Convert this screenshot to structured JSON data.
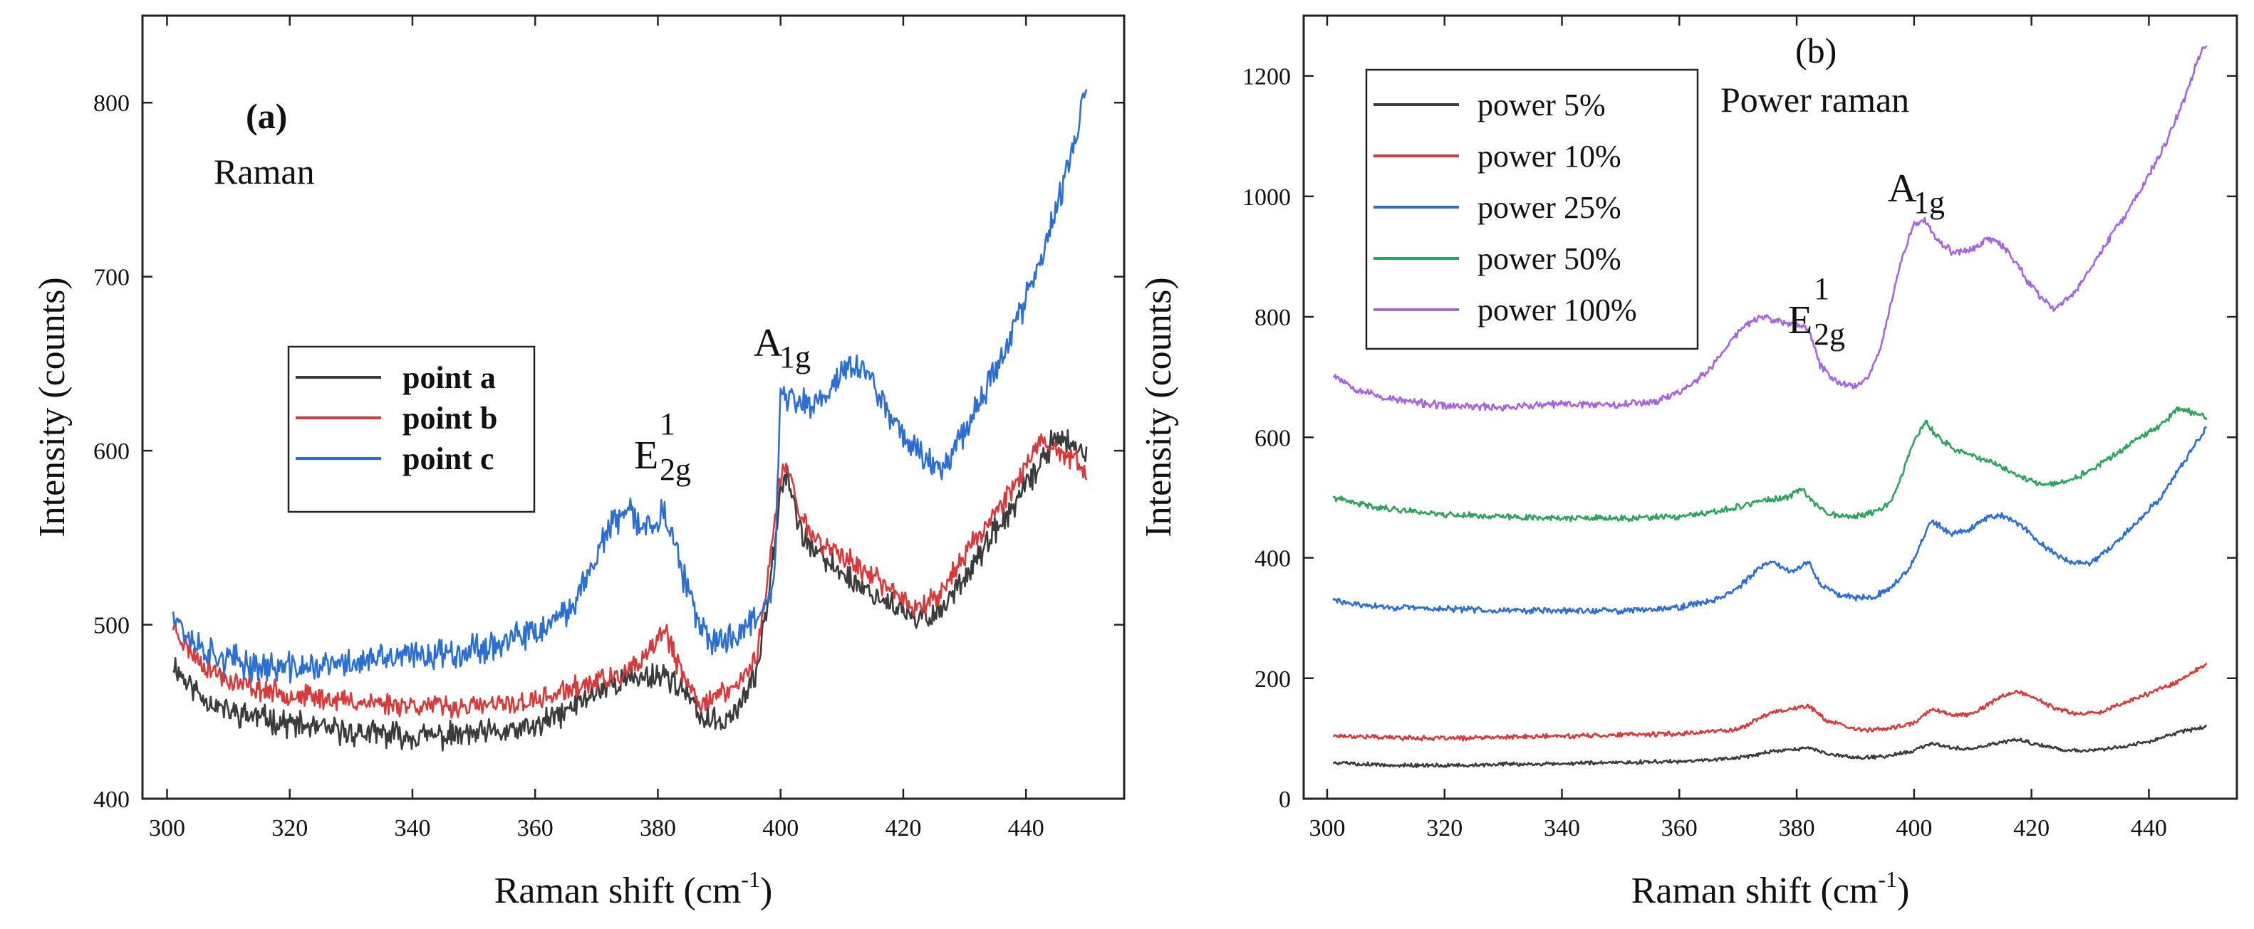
{
  "figure": {
    "panels": [
      "(a)",
      "(b)"
    ]
  },
  "chart_data": [
    {
      "type": "line",
      "panel_label": "(a)",
      "annotation": "Raman",
      "xlabel": "Raman shift (cm",
      "xlabel_sup": "-1",
      "xlabel_tail": ")",
      "ylabel": "Intensity (counts)",
      "xlim": [
        296,
        456
      ],
      "ylim": [
        400,
        850
      ],
      "x_ticks": [
        300,
        320,
        340,
        360,
        380,
        400,
        420,
        440
      ],
      "x_tick_labels": [
        "300",
        "320",
        "340",
        "360",
        "380",
        "400",
        "420",
        "440"
      ],
      "y_ticks": [
        400,
        500,
        600,
        700,
        800
      ],
      "y_tick_labels": [
        "400",
        "500",
        "600",
        "700",
        "800"
      ],
      "legend": {
        "placement": "center-left"
      },
      "peaks": [
        {
          "label_main": "E",
          "label_sup": "1",
          "label_sub": "2g",
          "x": 381,
          "y": 598
        },
        {
          "label_main": "A",
          "label_sup": "",
          "label_sub": "1g",
          "x": 401,
          "y": 648
        }
      ],
      "series": [
        {
          "name": "point a",
          "color": "#3b3b3b",
          "noise": 6,
          "seed": 11,
          "x": [
            301,
            303,
            306,
            310,
            315,
            320,
            325,
            330,
            335,
            340,
            345,
            350,
            355,
            360,
            365,
            370,
            374,
            378,
            381,
            384,
            387,
            390,
            393,
            396,
            398,
            400,
            401,
            403,
            406,
            410,
            414,
            418,
            422,
            426,
            430,
            434,
            438,
            442,
            445,
            448,
            450
          ],
          "y": [
            478,
            468,
            458,
            450,
            447,
            443,
            440,
            438,
            437,
            436,
            436,
            437,
            438,
            441,
            450,
            462,
            468,
            470,
            472,
            463,
            447,
            443,
            452,
            470,
            518,
            578,
            590,
            555,
            540,
            530,
            520,
            512,
            502,
            508,
            528,
            548,
            568,
            590,
            610,
            600,
            597
          ]
        },
        {
          "name": "point b",
          "color": "#d63a3a",
          "noise": 5,
          "seed": 23,
          "x": [
            301,
            303,
            306,
            310,
            315,
            320,
            325,
            330,
            335,
            340,
            345,
            350,
            355,
            360,
            365,
            370,
            374,
            378,
            381,
            384,
            387,
            390,
            393,
            396,
            398,
            400,
            401,
            403,
            406,
            410,
            414,
            418,
            422,
            426,
            430,
            434,
            438,
            442,
            445,
            448,
            450
          ],
          "y": [
            500,
            488,
            477,
            468,
            463,
            460,
            458,
            456,
            455,
            454,
            453,
            453,
            454,
            456,
            462,
            468,
            470,
            480,
            498,
            470,
            455,
            460,
            465,
            480,
            530,
            585,
            592,
            565,
            548,
            540,
            530,
            520,
            510,
            518,
            540,
            560,
            580,
            603,
            600,
            595,
            585
          ]
        },
        {
          "name": "point c",
          "color": "#2d6fd0",
          "noise": 7,
          "seed": 37,
          "x": [
            301,
            303,
            306,
            310,
            315,
            320,
            325,
            330,
            335,
            340,
            345,
            350,
            355,
            360,
            365,
            368,
            372,
            375,
            378,
            381,
            384,
            387,
            390,
            393,
            396,
            399,
            400,
            402,
            405,
            408,
            411,
            414,
            418,
            422,
            426,
            430,
            434,
            438,
            442,
            446,
            449,
            450
          ],
          "y": [
            510,
            495,
            486,
            480,
            476,
            475,
            476,
            478,
            480,
            482,
            484,
            486,
            490,
            495,
            505,
            525,
            555,
            565,
            555,
            565,
            530,
            495,
            490,
            495,
            505,
            525,
            630,
            630,
            625,
            635,
            650,
            645,
            620,
            600,
            590,
            612,
            640,
            670,
            705,
            750,
            795,
            805
          ]
        }
      ]
    },
    {
      "type": "line",
      "panel_label": "(b)",
      "annotation": "Power raman",
      "xlabel": "Raman shift (cm",
      "xlabel_sup": "-1",
      "xlabel_tail": ")",
      "ylabel": "Intensity (counts)",
      "xlim": [
        296,
        455
      ],
      "ylim": [
        0,
        1300
      ],
      "x_ticks": [
        300,
        320,
        340,
        360,
        380,
        400,
        420,
        440
      ],
      "x_tick_labels": [
        "300",
        "320",
        "340",
        "360",
        "380",
        "400",
        "420",
        "440"
      ],
      "y_ticks": [
        0,
        200,
        400,
        600,
        800,
        1000,
        1200
      ],
      "y_tick_labels": [
        "0",
        "200",
        "400",
        "600",
        "800",
        "1000",
        "1200"
      ],
      "legend": {
        "placement": "top-left"
      },
      "peaks": [
        {
          "label_main": "E",
          "label_sup": "1",
          "label_sub": "2g",
          "x": 381,
          "y": 770
        },
        {
          "label_main": "A",
          "label_sup": "",
          "label_sub": "1g",
          "x": 402,
          "y": 990
        }
      ],
      "series": [
        {
          "name": "power 5%",
          "color": "#3b3b3b",
          "noise": 2.5,
          "seed": 5,
          "x": [
            301,
            310,
            320,
            330,
            340,
            350,
            360,
            370,
            376,
            380,
            382,
            385,
            390,
            395,
            400,
            403,
            406,
            410,
            415,
            418,
            422,
            426,
            430,
            435,
            440,
            445,
            450
          ],
          "y": [
            60,
            56,
            55,
            57,
            58,
            60,
            62,
            68,
            78,
            82,
            85,
            75,
            68,
            70,
            80,
            92,
            85,
            82,
            95,
            97,
            88,
            80,
            80,
            85,
            95,
            110,
            120
          ]
        },
        {
          "name": "power 10%",
          "color": "#d63a3a",
          "noise": 3,
          "seed": 17,
          "x": [
            301,
            310,
            320,
            330,
            340,
            350,
            360,
            370,
            376,
            380,
            382,
            385,
            390,
            395,
            400,
            403,
            406,
            410,
            414,
            417,
            420,
            424,
            428,
            432,
            436,
            440,
            445,
            450
          ],
          "y": [
            105,
            102,
            100,
            102,
            104,
            106,
            108,
            115,
            145,
            150,
            155,
            130,
            115,
            115,
            125,
            150,
            140,
            140,
            165,
            178,
            170,
            150,
            140,
            145,
            160,
            175,
            195,
            225
          ]
        },
        {
          "name": "power 25%",
          "color": "#2d6fd0",
          "noise": 4,
          "seed": 29,
          "x": [
            301,
            305,
            310,
            320,
            330,
            340,
            350,
            360,
            366,
            370,
            374,
            376,
            378,
            380,
            382,
            384,
            387,
            390,
            393,
            396,
            399,
            401,
            403,
            406,
            409,
            412,
            415,
            418,
            422,
            426,
            430,
            434,
            438,
            442,
            446,
            450
          ],
          "y": [
            330,
            322,
            318,
            315,
            313,
            312,
            312,
            318,
            330,
            350,
            385,
            395,
            380,
            380,
            395,
            355,
            340,
            335,
            335,
            350,
            380,
            420,
            462,
            440,
            445,
            465,
            470,
            455,
            420,
            395,
            390,
            420,
            460,
            500,
            560,
            620
          ]
        },
        {
          "name": "power 50%",
          "color": "#2ea35f",
          "noise": 4,
          "seed": 41,
          "x": [
            301,
            305,
            310,
            320,
            330,
            340,
            350,
            360,
            366,
            370,
            374,
            378,
            381,
            383,
            386,
            390,
            393,
            396,
            398,
            400,
            402,
            404,
            407,
            410,
            414,
            418,
            422,
            426,
            430,
            434,
            438,
            442,
            445,
            448,
            450
          ],
          "y": [
            500,
            490,
            482,
            472,
            468,
            466,
            465,
            468,
            475,
            485,
            495,
            498,
            515,
            490,
            472,
            468,
            475,
            490,
            540,
            595,
            625,
            600,
            580,
            570,
            555,
            535,
            522,
            525,
            545,
            570,
            595,
            620,
            648,
            640,
            630
          ]
        },
        {
          "name": "power 100%",
          "color": "#a765dd",
          "noise": 5,
          "seed": 53,
          "x": [
            301,
            305,
            310,
            315,
            320,
            330,
            340,
            350,
            356,
            360,
            365,
            368,
            371,
            374,
            376,
            379,
            382,
            384,
            387,
            390,
            392,
            394,
            396,
            398,
            400,
            402,
            404,
            407,
            410,
            413,
            416,
            419,
            422,
            424,
            427,
            430,
            434,
            438,
            442,
            446,
            449,
            450
          ],
          "y": [
            705,
            680,
            665,
            658,
            652,
            650,
            655,
            655,
            660,
            675,
            710,
            750,
            785,
            800,
            795,
            788,
            780,
            720,
            690,
            685,
            700,
            740,
            820,
            900,
            955,
            960,
            925,
            905,
            915,
            930,
            910,
            865,
            825,
            815,
            835,
            880,
            940,
            1000,
            1070,
            1160,
            1245,
            1250
          ]
        }
      ]
    }
  ]
}
